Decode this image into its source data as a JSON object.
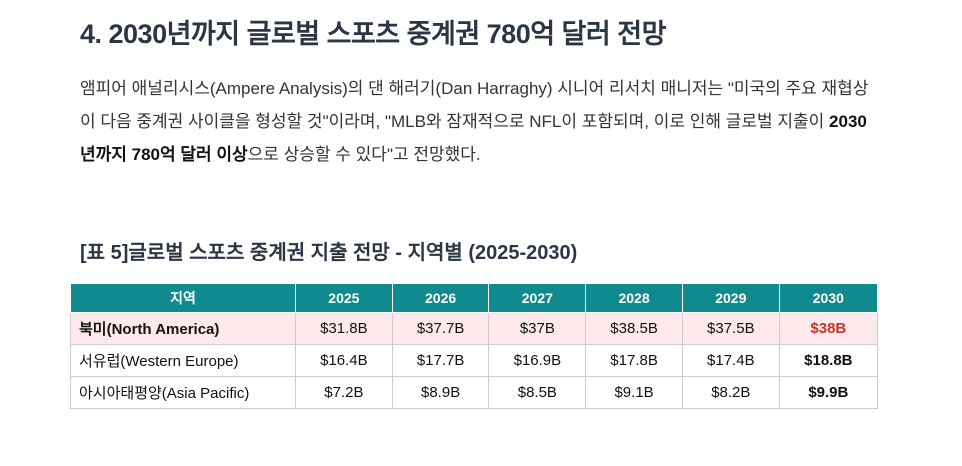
{
  "heading": "4. 2030년까지 글로벌 스포츠 중계권 780억 달러 전망",
  "paragraph": [
    "앰피어 애널리시스(Ampere Analysis)의 댄 해러기(Dan Harraghy) 시니어 리서치 매니저는 \"미국의 주요 재협상이 다음 중계권 사이클을 형성할 것\"이라며, \"MLB와 잠재적으로 NFL이 포함되며, 이로 인해 글로벌 지출이 ",
    "2030년까지 780억 달러 이상",
    "으로 상승할 수 있다\"고 전망했다."
  ],
  "table": {
    "caption": "[표 5]글로벌 스포츠 중계권 지출 전망 - 지역별 (2025-2030)",
    "header": [
      "지역",
      "2025",
      "2026",
      "2027",
      "2028",
      "2029",
      "2030"
    ],
    "rows": [
      [
        "북미(North America)",
        "$31.8B",
        "$37.7B",
        "$37B",
        "$38.5B",
        "$37.5B",
        "$38B"
      ],
      [
        "서유럽(Western Europe)",
        "$16.4B",
        "$17.7B",
        "$16.9B",
        "$17.8B",
        "$17.4B",
        "$18.8B"
      ],
      [
        "아시아태평양(Asia Pacific)",
        "$7.2B",
        "$8.9B",
        "$8.5B",
        "$9.1B",
        "$8.2B",
        "$9.9B"
      ]
    ]
  }
}
